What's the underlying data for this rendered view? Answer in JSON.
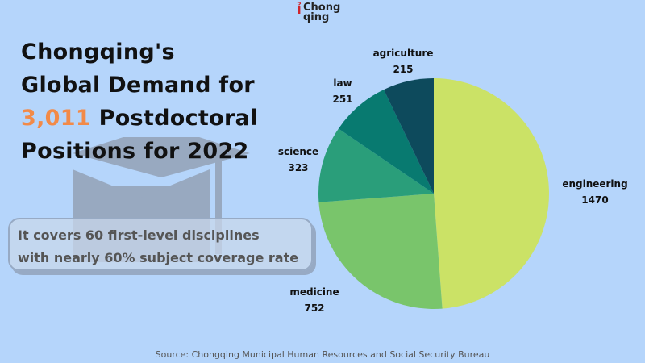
{
  "logo": {
    "text_line1": "Chong",
    "text_line2": "qing"
  },
  "title": {
    "line1": "Chongqing's",
    "line2": "Global Demand for",
    "highlight": "3,011",
    "line3_rest": " Postdoctoral",
    "line4": "Positions for 2022"
  },
  "note": {
    "line1": "It covers 60 first-level disciplines",
    "line2": "with nearly 60% subject coverage rate"
  },
  "source": "Source: Chongqing Municipal Human Resources and Social Security Bureau",
  "colors": {
    "background": "#b5d5fb",
    "highlight": "#f28a48"
  },
  "chart_data": {
    "type": "pie",
    "title": "Chongqing's Global Demand for 3,011 Postdoctoral Positions for 2022",
    "start": "top-clockwise",
    "slices": [
      {
        "label": "engineering",
        "value": 1470,
        "color": "#cbe266"
      },
      {
        "label": "medicine",
        "value": 752,
        "color": "#79c56b"
      },
      {
        "label": "science",
        "value": 323,
        "color": "#2a9e7a"
      },
      {
        "label": "law",
        "value": 251,
        "color": "#087a70"
      },
      {
        "label": "agriculture",
        "value": 215,
        "color": "#0d4a5c"
      }
    ]
  }
}
